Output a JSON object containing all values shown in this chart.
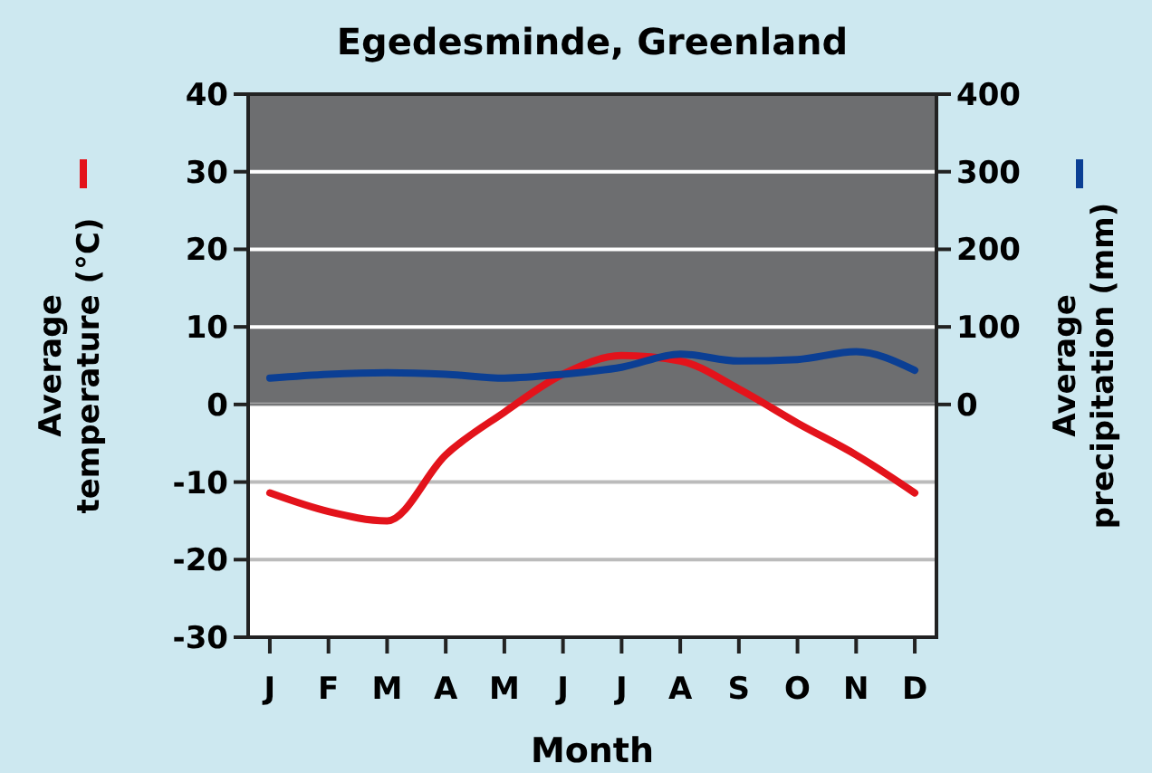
{
  "chart_data": {
    "type": "line",
    "title": "Egedesminde, Greenland",
    "xlabel": "Month",
    "ylabel": "Average temperature (°C)",
    "y2label": "Average precipitation (mm)",
    "categories": [
      "J",
      "F",
      "M",
      "A",
      "M",
      "J",
      "J",
      "A",
      "S",
      "O",
      "N",
      "D"
    ],
    "ylim": [
      -30,
      40
    ],
    "yticks": [
      -30,
      -20,
      -10,
      0,
      10,
      20,
      30,
      40
    ],
    "y2lim": [
      -300,
      400
    ],
    "y2ticks": [
      0,
      100,
      200,
      300,
      400
    ],
    "series": [
      {
        "color": "#e3131b",
        "values": [
          -11.4,
          -13.8,
          -15,
          -6.5,
          -1,
          3.9,
          6.3,
          5.6,
          2,
          -2.4,
          -6.5,
          -11.4
        ]
      },
      {
        "color": "#0b3f94",
        "axis": "y2",
        "values": [
          34,
          39,
          41,
          39,
          34,
          39,
          48,
          65,
          56,
          58,
          68,
          44
        ]
      }
    ],
    "bands": [
      {
        "axis": "y",
        "from": 0,
        "to": 40,
        "color": "#6d6e70"
      }
    ],
    "grid": "y",
    "line_style": "solid",
    "marker": "none"
  }
}
